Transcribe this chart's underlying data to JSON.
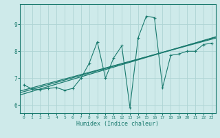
{
  "xlabel": "Humidex (Indice chaleur)",
  "bg_color": "#ceeaea",
  "line_color": "#1a7a6e",
  "grid_color": "#aed4d4",
  "xlim": [
    -0.5,
    23.5
  ],
  "ylim": [
    5.7,
    9.75
  ],
  "xticks": [
    0,
    1,
    2,
    3,
    4,
    5,
    6,
    7,
    8,
    9,
    10,
    11,
    12,
    13,
    14,
    15,
    16,
    17,
    18,
    19,
    20,
    21,
    22,
    23
  ],
  "yticks": [
    6,
    7,
    8,
    9
  ],
  "data_x": [
    0,
    1,
    2,
    3,
    4,
    5,
    6,
    7,
    8,
    9,
    10,
    11,
    12,
    13,
    14,
    15,
    16,
    17,
    18,
    19,
    20,
    21,
    22,
    23
  ],
  "data_y": [
    6.75,
    6.6,
    6.58,
    6.62,
    6.65,
    6.55,
    6.62,
    7.0,
    7.55,
    8.35,
    7.0,
    7.75,
    8.2,
    5.9,
    8.5,
    9.3,
    9.25,
    6.65,
    7.85,
    7.9,
    8.0,
    8.0,
    8.25,
    8.3
  ],
  "reg_lines": [
    {
      "slope": 0.09,
      "intercept": 6.42
    },
    {
      "slope": 0.086,
      "intercept": 6.5
    },
    {
      "slope": 0.082,
      "intercept": 6.56
    }
  ]
}
